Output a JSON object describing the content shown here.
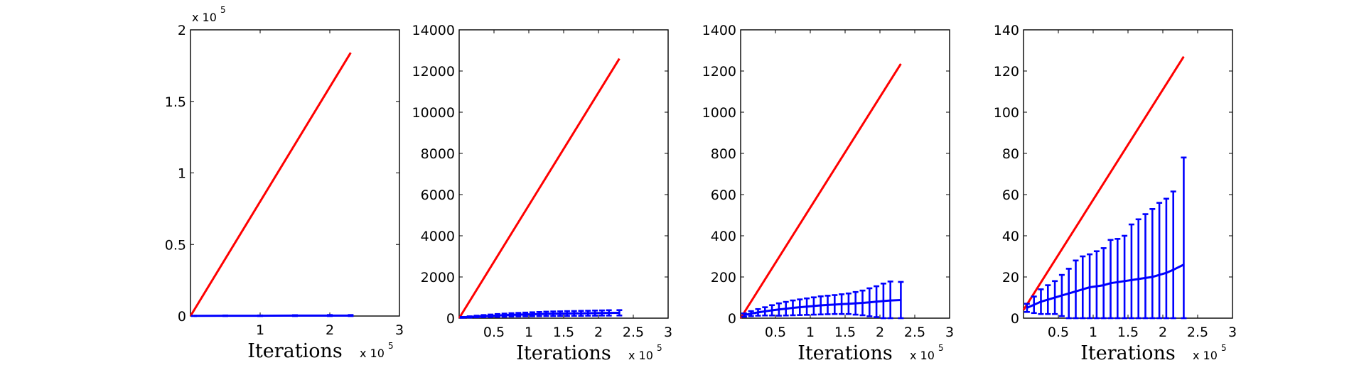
{
  "chart_data": [
    {
      "type": "line",
      "xlabel": "Iterations",
      "x_multiplier_label": "x 10",
      "x_multiplier_exponent": "5",
      "y_multiplier_label": "x 10",
      "y_multiplier_exponent": "5",
      "xlim": [
        0,
        3
      ],
      "ylim": [
        0,
        2
      ],
      "xticks": [
        1,
        2,
        3
      ],
      "xtick_labels": [
        "1",
        "2",
        "3"
      ],
      "yticks": [
        0,
        0.5,
        1,
        1.5,
        2
      ],
      "ytick_labels": [
        "0",
        "0.5",
        "1",
        "1.5",
        "2"
      ],
      "series": [
        {
          "color": "#ff0000",
          "x": [
            0.0,
            2.3
          ],
          "y": [
            0.0,
            1.84
          ]
        },
        {
          "color": "#0000ff",
          "x": [
            0.05,
            0.5,
            1.0,
            1.5,
            2.0,
            2.3
          ],
          "y": [
            0.001,
            0.002,
            0.002,
            0.003,
            0.003,
            0.003
          ],
          "err": [
            0.001,
            0.002,
            0.002,
            0.003,
            0.004,
            0.004
          ]
        }
      ]
    },
    {
      "type": "line",
      "xlabel": "Iterations",
      "x_multiplier_label": "x 10",
      "x_multiplier_exponent": "5",
      "xlim": [
        0,
        3
      ],
      "ylim": [
        0,
        14000
      ],
      "xticks": [
        0.5,
        1,
        1.5,
        2,
        2.5,
        3
      ],
      "xtick_labels": [
        "0.5",
        "1",
        "1.5",
        "2",
        "2.5",
        "3"
      ],
      "yticks": [
        0,
        2000,
        4000,
        6000,
        8000,
        10000,
        12000,
        14000
      ],
      "ytick_labels": [
        "0",
        "2000",
        "4000",
        "6000",
        "8000",
        "10000",
        "12000",
        "14000"
      ],
      "series": [
        {
          "color": "#ff0000",
          "x": [
            0.0,
            2.3
          ],
          "y": [
            0,
            12600
          ]
        },
        {
          "color": "#0000ff",
          "x": [
            0.05,
            0.15,
            0.25,
            0.35,
            0.45,
            0.55,
            0.65,
            0.75,
            0.85,
            0.95,
            1.05,
            1.15,
            1.25,
            1.35,
            1.45,
            1.55,
            1.65,
            1.75,
            1.85,
            1.95,
            2.05,
            2.15,
            2.3
          ],
          "y": [
            40,
            60,
            80,
            100,
            115,
            130,
            145,
            160,
            170,
            180,
            190,
            200,
            210,
            215,
            220,
            225,
            230,
            235,
            240,
            245,
            250,
            255,
            260
          ],
          "err": [
            20,
            30,
            40,
            50,
            60,
            70,
            75,
            80,
            85,
            90,
            95,
            100,
            105,
            110,
            110,
            115,
            115,
            120,
            120,
            125,
            125,
            130,
            130
          ]
        }
      ]
    },
    {
      "type": "line",
      "xlabel": "Iterations",
      "x_multiplier_label": "x 10",
      "x_multiplier_exponent": "5",
      "xlim": [
        0,
        3
      ],
      "ylim": [
        0,
        1400
      ],
      "xticks": [
        0.5,
        1,
        1.5,
        2,
        2.5,
        3
      ],
      "xtick_labels": [
        "0.5",
        "1",
        "1.5",
        "2",
        "2.5",
        "3"
      ],
      "yticks": [
        0,
        200,
        400,
        600,
        800,
        1000,
        1200,
        1400
      ],
      "ytick_labels": [
        "0",
        "200",
        "400",
        "600",
        "800",
        "1000",
        "1200",
        "1400"
      ],
      "series": [
        {
          "color": "#ff0000",
          "x": [
            0.0,
            2.3
          ],
          "y": [
            0,
            1235
          ]
        },
        {
          "color": "#0000ff",
          "x": [
            0.05,
            0.15,
            0.25,
            0.35,
            0.45,
            0.55,
            0.65,
            0.75,
            0.85,
            0.95,
            1.05,
            1.15,
            1.25,
            1.35,
            1.45,
            1.55,
            1.65,
            1.75,
            1.85,
            1.95,
            2.05,
            2.15,
            2.3
          ],
          "y": [
            15,
            22,
            28,
            33,
            38,
            42,
            46,
            50,
            53,
            56,
            59,
            62,
            64,
            66,
            68,
            70,
            72,
            74,
            77,
            80,
            83,
            86,
            88
          ],
          "err": [
            8,
            12,
            16,
            20,
            25,
            30,
            33,
            36,
            38,
            40,
            42,
            44,
            45,
            46,
            48,
            50,
            55,
            60,
            68,
            75,
            85,
            92,
            88
          ]
        }
      ]
    },
    {
      "type": "line",
      "xlabel": "Iterations",
      "x_multiplier_label": "x 10",
      "x_multiplier_exponent": "5",
      "xlim": [
        0,
        3
      ],
      "ylim": [
        0,
        140
      ],
      "xticks": [
        0.5,
        1,
        1.5,
        2,
        2.5,
        3
      ],
      "xtick_labels": [
        "0.5",
        "1",
        "1.5",
        "2",
        "2.5",
        "3"
      ],
      "yticks": [
        0,
        20,
        40,
        60,
        80,
        100,
        120,
        140
      ],
      "ytick_labels": [
        "0",
        "20",
        "40",
        "60",
        "80",
        "100",
        "120",
        "140"
      ],
      "series": [
        {
          "color": "#ff0000",
          "x": [
            0.0,
            2.3
          ],
          "y": [
            4,
            127
          ]
        },
        {
          "color": "#0000ff",
          "x": [
            0.05,
            0.15,
            0.25,
            0.35,
            0.45,
            0.55,
            0.65,
            0.75,
            0.85,
            0.95,
            1.05,
            1.15,
            1.25,
            1.35,
            1.45,
            1.55,
            1.65,
            1.75,
            1.85,
            1.95,
            2.05,
            2.15,
            2.3
          ],
          "y": [
            5,
            6.5,
            8,
            9,
            10,
            11,
            12,
            13,
            14,
            15,
            15.5,
            16,
            17,
            17.5,
            18,
            18.5,
            19,
            19.5,
            20,
            21,
            22,
            23.5,
            26
          ],
          "err": [
            2,
            4,
            6,
            7,
            8,
            10,
            12,
            15,
            16,
            16,
            17,
            18,
            21,
            21,
            22,
            27,
            29,
            31,
            33,
            35,
            36,
            38,
            52
          ]
        }
      ]
    }
  ]
}
